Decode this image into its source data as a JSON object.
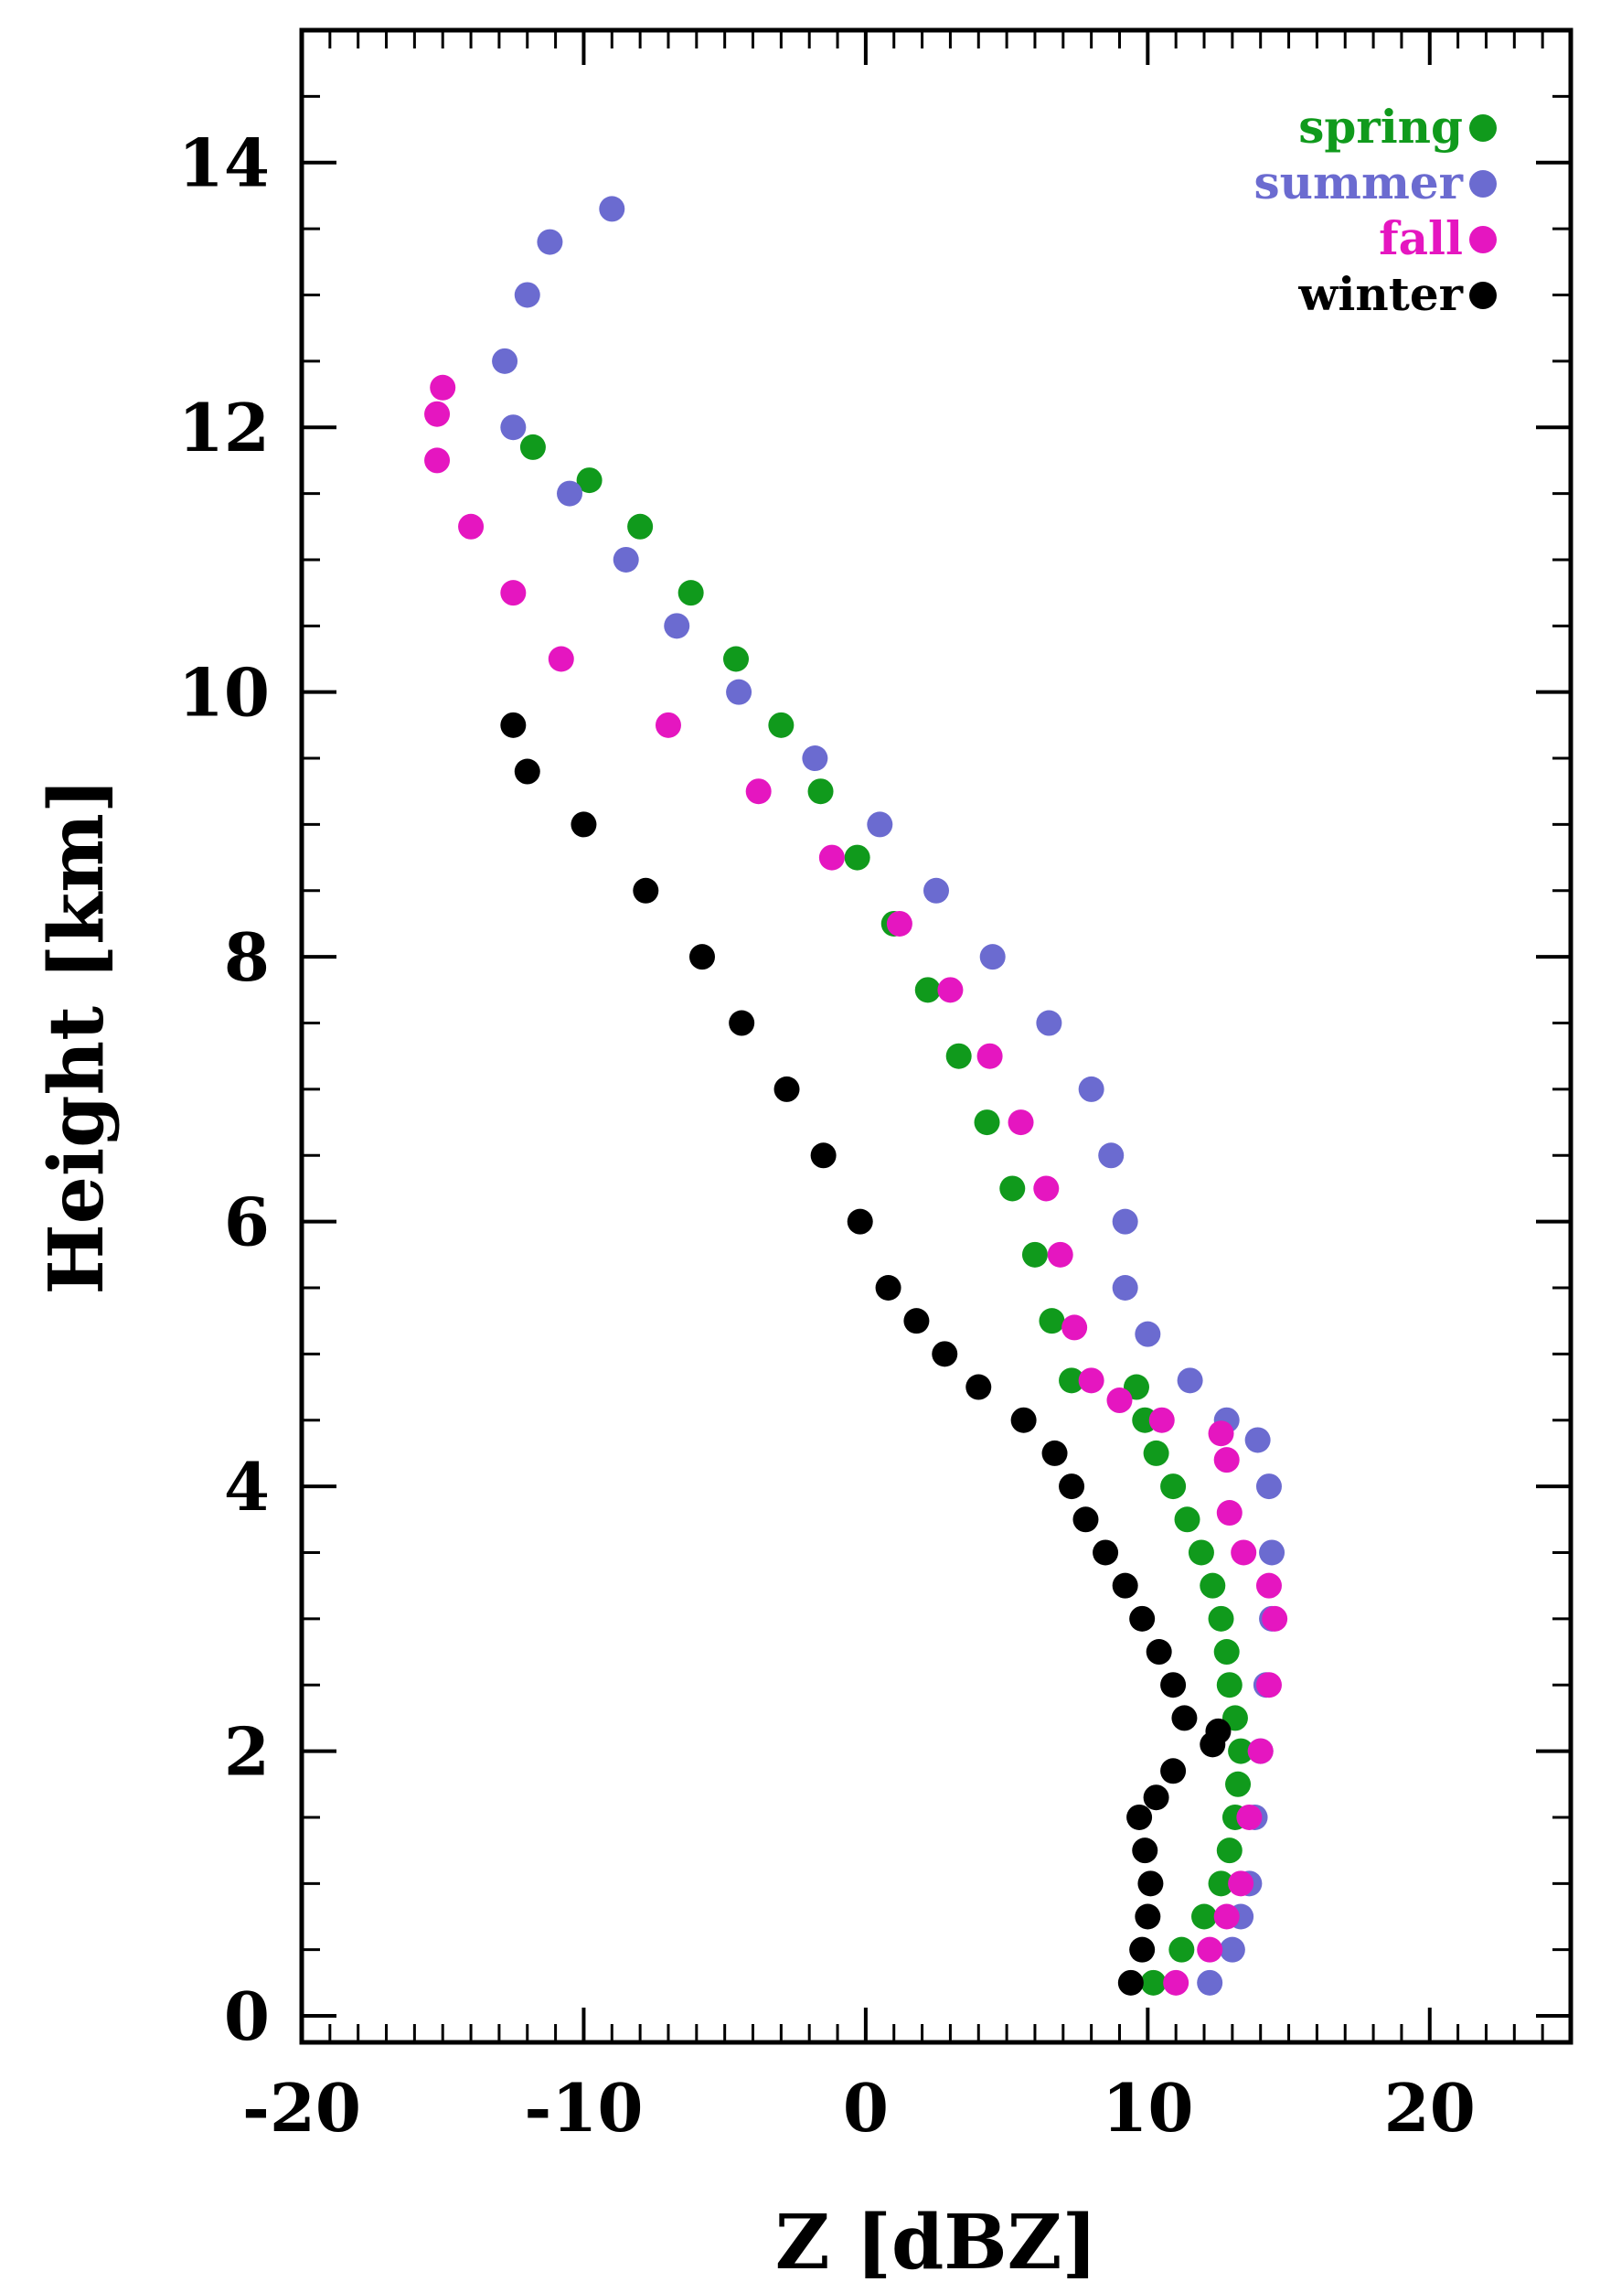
{
  "chart_data": {
    "type": "scatter",
    "title": "",
    "xlabel": "Z [dBZ]",
    "ylabel": "Height [km]",
    "xlim": [
      -20,
      25
    ],
    "ylim": [
      -0.2,
      15
    ],
    "xticks": [
      -20,
      -10,
      0,
      10,
      20
    ],
    "yticks": [
      0,
      2,
      4,
      6,
      8,
      10,
      12,
      14
    ],
    "x_minor_step": 1,
    "y_minor_step": 0.5,
    "grid": false,
    "legend_position": "top-right",
    "series": [
      {
        "name": "spring",
        "color": "#109a1c",
        "points": [
          [
            10.2,
            0.25
          ],
          [
            11.2,
            0.5
          ],
          [
            12.0,
            0.75
          ],
          [
            12.6,
            1.0
          ],
          [
            12.9,
            1.25
          ],
          [
            13.1,
            1.5
          ],
          [
            13.2,
            1.75
          ],
          [
            13.3,
            2.0
          ],
          [
            13.1,
            2.25
          ],
          [
            12.9,
            2.5
          ],
          [
            12.8,
            2.75
          ],
          [
            12.6,
            3.0
          ],
          [
            12.3,
            3.25
          ],
          [
            11.9,
            3.5
          ],
          [
            11.4,
            3.75
          ],
          [
            10.9,
            4.0
          ],
          [
            10.3,
            4.25
          ],
          [
            9.9,
            4.5
          ],
          [
            9.6,
            4.75
          ],
          [
            7.3,
            4.8
          ],
          [
            6.6,
            5.25
          ],
          [
            6.0,
            5.75
          ],
          [
            5.2,
            6.25
          ],
          [
            4.3,
            6.75
          ],
          [
            3.3,
            7.25
          ],
          [
            2.2,
            7.75
          ],
          [
            1.0,
            8.25
          ],
          [
            -0.3,
            8.75
          ],
          [
            -1.6,
            9.25
          ],
          [
            -3.0,
            9.75
          ],
          [
            -4.6,
            10.25
          ],
          [
            -6.2,
            10.75
          ],
          [
            -8.0,
            11.25
          ],
          [
            -9.8,
            11.6
          ],
          [
            -11.8,
            11.85
          ]
        ]
      },
      {
        "name": "summer",
        "color": "#6b6bd0",
        "points": [
          [
            12.2,
            0.25
          ],
          [
            13.0,
            0.5
          ],
          [
            13.3,
            0.75
          ],
          [
            13.6,
            1.0
          ],
          [
            13.8,
            1.5
          ],
          [
            14.0,
            2.0
          ],
          [
            14.2,
            2.5
          ],
          [
            14.4,
            3.0
          ],
          [
            14.4,
            3.5
          ],
          [
            14.3,
            4.0
          ],
          [
            13.9,
            4.35
          ],
          [
            12.8,
            4.5
          ],
          [
            11.5,
            4.8
          ],
          [
            10.0,
            5.15
          ],
          [
            9.2,
            5.5
          ],
          [
            9.2,
            6.0
          ],
          [
            8.7,
            6.5
          ],
          [
            8.0,
            7.0
          ],
          [
            6.5,
            7.5
          ],
          [
            4.5,
            8.0
          ],
          [
            2.5,
            8.5
          ],
          [
            0.5,
            9.0
          ],
          [
            -1.8,
            9.5
          ],
          [
            -4.5,
            10.0
          ],
          [
            -6.7,
            10.5
          ],
          [
            -8.5,
            11.0
          ],
          [
            -10.5,
            11.5
          ],
          [
            -12.5,
            12.0
          ],
          [
            -12.8,
            12.5
          ],
          [
            -12.0,
            13.0
          ],
          [
            -11.2,
            13.4
          ],
          [
            -9.0,
            13.65
          ]
        ]
      },
      {
        "name": "fall",
        "color": "#e516c0",
        "points": [
          [
            11.0,
            0.25
          ],
          [
            12.2,
            0.5
          ],
          [
            12.8,
            0.75
          ],
          [
            13.3,
            1.0
          ],
          [
            13.6,
            1.5
          ],
          [
            14.0,
            2.0
          ],
          [
            14.3,
            2.5
          ],
          [
            14.5,
            3.0
          ],
          [
            14.3,
            3.25
          ],
          [
            13.4,
            3.5
          ],
          [
            12.9,
            3.8
          ],
          [
            12.8,
            4.2
          ],
          [
            12.6,
            4.4
          ],
          [
            10.5,
            4.5
          ],
          [
            9.0,
            4.65
          ],
          [
            8.0,
            4.8
          ],
          [
            7.4,
            5.2
          ],
          [
            6.9,
            5.75
          ],
          [
            6.4,
            6.25
          ],
          [
            5.5,
            6.75
          ],
          [
            4.4,
            7.25
          ],
          [
            3.0,
            7.75
          ],
          [
            1.2,
            8.25
          ],
          [
            -1.2,
            8.75
          ],
          [
            -3.8,
            9.25
          ],
          [
            -7.0,
            9.75
          ],
          [
            -10.8,
            10.25
          ],
          [
            -12.5,
            10.75
          ],
          [
            -14.0,
            11.25
          ],
          [
            -15.2,
            11.75
          ],
          [
            -15.2,
            12.1
          ],
          [
            -15.0,
            12.3
          ]
        ]
      },
      {
        "name": "winter",
        "color": "#000000",
        "points": [
          [
            9.4,
            0.25
          ],
          [
            9.8,
            0.5
          ],
          [
            10.0,
            0.75
          ],
          [
            10.1,
            1.0
          ],
          [
            9.9,
            1.25
          ],
          [
            9.7,
            1.5
          ],
          [
            10.3,
            1.65
          ],
          [
            10.9,
            1.85
          ],
          [
            12.3,
            2.05
          ],
          [
            12.5,
            2.15
          ],
          [
            11.3,
            2.25
          ],
          [
            10.9,
            2.5
          ],
          [
            10.4,
            2.75
          ],
          [
            9.8,
            3.0
          ],
          [
            9.2,
            3.25
          ],
          [
            8.5,
            3.5
          ],
          [
            7.8,
            3.75
          ],
          [
            7.3,
            4.0
          ],
          [
            6.7,
            4.25
          ],
          [
            5.6,
            4.5
          ],
          [
            4.0,
            4.75
          ],
          [
            2.8,
            5.0
          ],
          [
            1.8,
            5.25
          ],
          [
            0.8,
            5.5
          ],
          [
            -0.2,
            6.0
          ],
          [
            -1.5,
            6.5
          ],
          [
            -2.8,
            7.0
          ],
          [
            -4.4,
            7.5
          ],
          [
            -5.8,
            8.0
          ],
          [
            -7.8,
            8.5
          ],
          [
            -10.0,
            9.0
          ],
          [
            -12.0,
            9.4
          ],
          [
            -12.5,
            9.75
          ]
        ]
      }
    ]
  }
}
